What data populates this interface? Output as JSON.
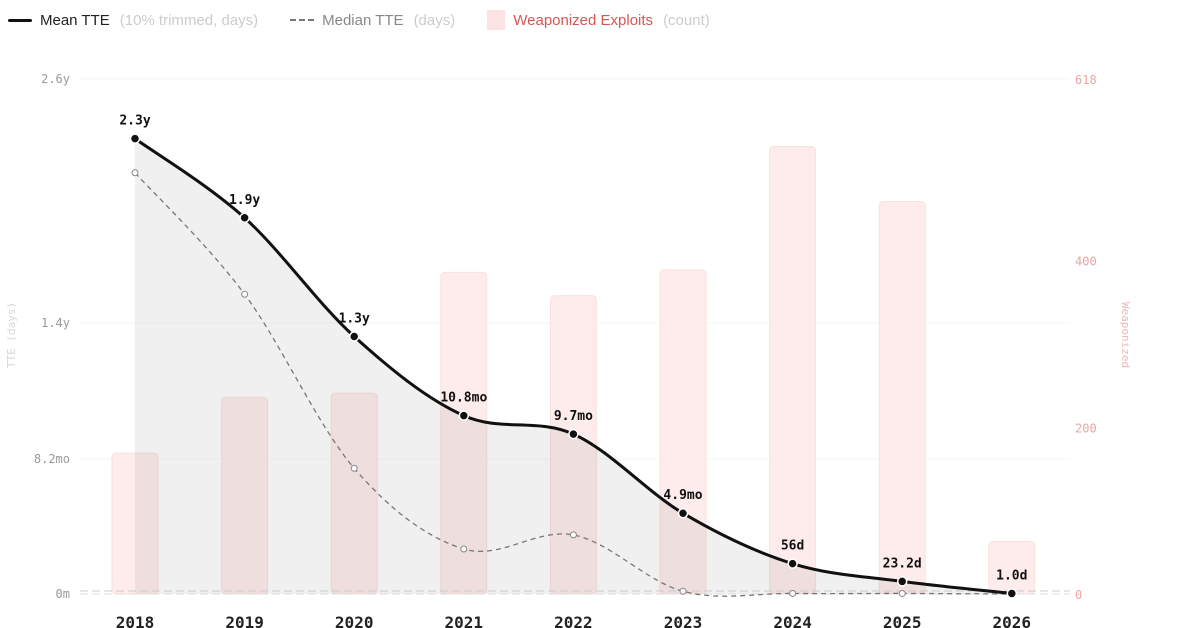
{
  "legend": [
    {
      "label": "Mean TTE",
      "note": "(10% trimmed, days)",
      "style": "solid-line",
      "color": "#111111"
    },
    {
      "label": "Median TTE",
      "note": "(days)",
      "style": "dashed-line",
      "color": "#777777"
    },
    {
      "label": "Weaponized Exploits",
      "note": "(count)",
      "style": "bar",
      "color": "#fde3e3"
    }
  ],
  "chart_data": {
    "type": "bar+line",
    "categories": [
      "2018",
      "2019",
      "2020",
      "2021",
      "2022",
      "2023",
      "2024",
      "2025",
      "2026"
    ],
    "left_axis": {
      "label": "TTE (days)",
      "range_days": [
        0,
        950
      ],
      "tick_labels": [
        "0m",
        "8.2mo",
        "1.4y",
        "2.6y"
      ],
      "tick_values_days": [
        0,
        249,
        500,
        950
      ]
    },
    "right_axis": {
      "label": "Weaponized",
      "range": [
        0,
        618
      ],
      "tick_labels": [
        "0",
        "200",
        "400",
        "618"
      ],
      "tick_values": [
        0,
        200,
        400,
        618
      ]
    },
    "grid": true,
    "legend_position": "top-left",
    "series": [
      {
        "name": "Mean TTE",
        "axis": "left",
        "type": "line",
        "values_days": [
          840,
          694,
          475,
          329,
          295,
          149,
          56,
          23.2,
          1.0
        ],
        "data_labels": [
          "2.3y",
          "1.9y",
          "1.3y",
          "10.8mo",
          "9.7mo",
          "4.9mo",
          "56d",
          "23.2d",
          "1.0d"
        ]
      },
      {
        "name": "Median TTE",
        "axis": "left",
        "type": "dashed-line",
        "values_days": [
          777,
          553,
          232,
          83,
          109,
          5,
          1,
          1,
          0
        ]
      },
      {
        "name": "Weaponized Exploits",
        "axis": "right",
        "type": "bar",
        "values": [
          169,
          236,
          241,
          386,
          358,
          389,
          537,
          471,
          63
        ]
      }
    ]
  }
}
